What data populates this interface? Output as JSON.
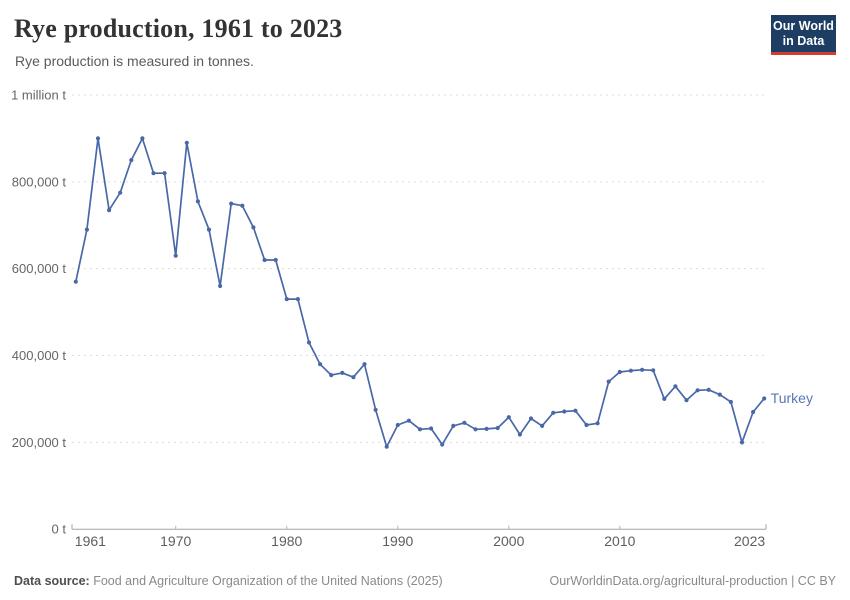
{
  "header": {
    "title": "Rye production, 1961 to 2023",
    "subtitle": "Rye production is measured in tonnes."
  },
  "logo": {
    "line1": "Our World",
    "line2": "in Data",
    "bg_color": "#1d3d63",
    "accent_color": "#d43b32"
  },
  "chart_data": {
    "type": "line",
    "title": "Rye production, 1961 to 2023",
    "unit": "tonnes",
    "xlim": [
      1961,
      2023
    ],
    "ylim": [
      0,
      1000000
    ],
    "grid": true,
    "legend": "end-of-line-label",
    "xticks": [
      1961,
      1970,
      1980,
      1990,
      2000,
      2010,
      2023
    ],
    "yticks": [
      {
        "value": 1000000,
        "label": "1 million t"
      },
      {
        "value": 800000,
        "label": "800,000 t"
      },
      {
        "value": 600000,
        "label": "600,000 t"
      },
      {
        "value": 400000,
        "label": "400,000 t"
      },
      {
        "value": 200000,
        "label": "200,000 t"
      },
      {
        "value": 0,
        "label": "0 t"
      }
    ],
    "series": [
      {
        "name": "Turkey",
        "color": "#4a68a8",
        "label_color": "#5878b4",
        "x": [
          1961,
          1962,
          1963,
          1964,
          1965,
          1966,
          1967,
          1968,
          1969,
          1970,
          1971,
          1972,
          1973,
          1974,
          1975,
          1976,
          1977,
          1978,
          1979,
          1980,
          1981,
          1982,
          1983,
          1984,
          1985,
          1986,
          1987,
          1988,
          1989,
          1990,
          1991,
          1992,
          1993,
          1994,
          1995,
          1996,
          1997,
          1998,
          1999,
          2000,
          2001,
          2002,
          2003,
          2004,
          2005,
          2006,
          2007,
          2008,
          2009,
          2010,
          2011,
          2012,
          2013,
          2014,
          2015,
          2016,
          2017,
          2018,
          2019,
          2020,
          2021,
          2022,
          2023
        ],
        "values": [
          570000,
          690000,
          900000,
          735000,
          775000,
          850000,
          900000,
          820000,
          820000,
          630000,
          890000,
          755000,
          690000,
          560000,
          750000,
          745000,
          695000,
          620000,
          620000,
          530000,
          530000,
          430000,
          380000,
          355000,
          360000,
          350000,
          380000,
          275000,
          190000,
          240000,
          250000,
          230000,
          232000,
          195000,
          238000,
          245000,
          230000,
          231000,
          233000,
          258000,
          218000,
          255000,
          238000,
          268000,
          271000,
          273000,
          240000,
          244000,
          340000,
          362000,
          365000,
          367000,
          366000,
          300000,
          329000,
          297000,
          320000,
          321000,
          310000,
          293000,
          200000,
          270000,
          301000
        ]
      }
    ]
  },
  "footer": {
    "source_label": "Data source:",
    "source_text": " Food and Agriculture Organization of the United Nations (2025)",
    "credit": "OurWorldinData.org/agricultural-production | CC BY"
  }
}
